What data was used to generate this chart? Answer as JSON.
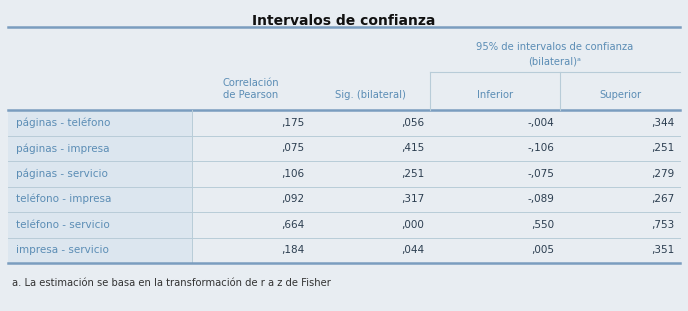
{
  "title": "Intervalos de confianza",
  "bg_color": "#e8edf2",
  "header_text_color": "#5b8db5",
  "row_label_color": "#5b8db5",
  "data_color": "#2c3e50",
  "footnote_color": "#333333",
  "thick_line_color": "#7a9dbf",
  "thin_line_color": "#b8ccd8",
  "row_labels": [
    "páginas - teléfono",
    "páginas - impresa",
    "páginas - servicio",
    "teléfono - impresa",
    "teléfono - servicio",
    "impresa - servicio"
  ],
  "pearson": [
    ",175",
    ",075",
    ",106",
    ",092",
    ",664",
    ",184"
  ],
  "sig": [
    ",056",
    ",415",
    ",251",
    ",317",
    ",000",
    ",044"
  ],
  "inferior": [
    "-,004",
    "-,106",
    "-,075",
    "-,089",
    ",550",
    ",005"
  ],
  "superior": [
    ",344",
    ",251",
    ",279",
    ",267",
    ",753",
    ",351"
  ],
  "footnote": "a. La estimación se basa en la transformación de r a z de Fisher",
  "merged_header_line1": "95% de intervalos de confianza",
  "merged_header_line2": "(bilateral)ᵃ",
  "col1_header_line1": "Correlación",
  "col1_header_line2": "de Pearson",
  "col2_header": "Sig. (bilateral)",
  "col3_header": "Inferior",
  "col4_header": "Superior"
}
